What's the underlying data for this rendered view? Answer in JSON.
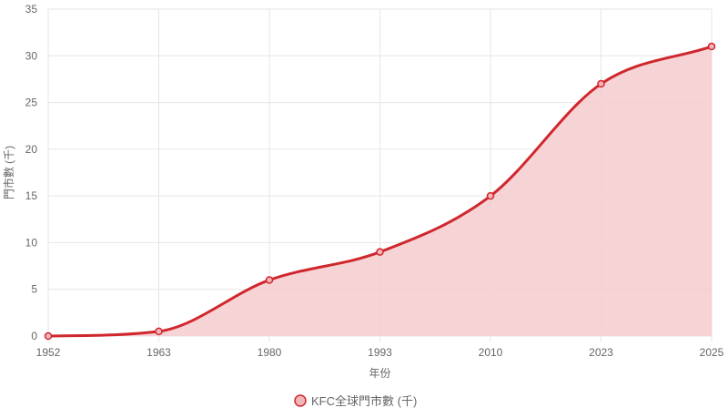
{
  "chart_data": {
    "type": "area",
    "categories": [
      "1952",
      "1963",
      "1980",
      "1993",
      "2010",
      "2023",
      "2025"
    ],
    "series": [
      {
        "name": "KFC全球門市數 (千)",
        "values": [
          0,
          0.5,
          6,
          9,
          15,
          27,
          31
        ]
      }
    ],
    "xlabel": "年份",
    "ylabel": "門市數 (千)",
    "ylim": [
      0,
      35
    ],
    "yticks": [
      0,
      5,
      10,
      15,
      20,
      25,
      30,
      35
    ],
    "grid": true,
    "legend_position": "bottom",
    "colors": {
      "line": "#d0272d",
      "fill": "#f5cccf",
      "point_fill": "#f3b5b9",
      "grid": "#e6e6e6",
      "text": "#666666"
    }
  }
}
